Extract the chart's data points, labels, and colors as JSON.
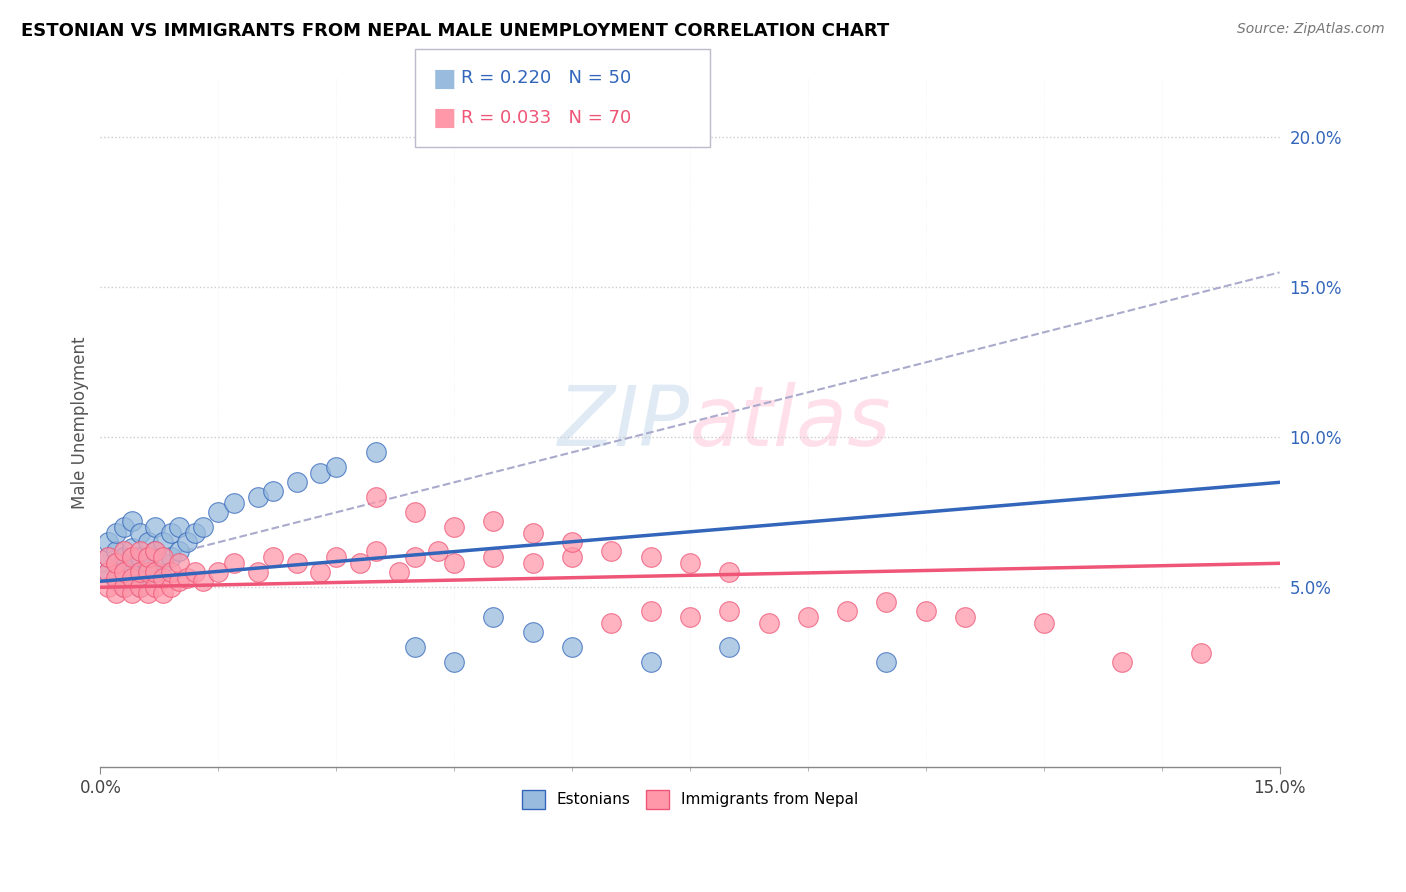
{
  "title": "ESTONIAN VS IMMIGRANTS FROM NEPAL MALE UNEMPLOYMENT CORRELATION CHART",
  "source": "Source: ZipAtlas.com",
  "ylabel": "Male Unemployment",
  "yaxis_ticks": [
    5.0,
    10.0,
    15.0,
    20.0
  ],
  "xlim": [
    0.0,
    0.15
  ],
  "ylim": [
    -0.01,
    0.22
  ],
  "legend1_R": 0.22,
  "legend1_N": 50,
  "legend2_R": 0.033,
  "legend2_N": 70,
  "color_estonian": "#99BBDD",
  "color_nepal": "#FF99AA",
  "color_trend_estonian": "#3366BB",
  "color_trend_nepal": "#EE5577",
  "color_trend_dashed": "#AAAACC",
  "watermark_color": "#CCDDEE",
  "watermark_color2": "#FFCCDD",
  "estonian_x": [
    0.001,
    0.001,
    0.001,
    0.002,
    0.002,
    0.002,
    0.002,
    0.003,
    0.003,
    0.003,
    0.003,
    0.004,
    0.004,
    0.004,
    0.004,
    0.005,
    0.005,
    0.005,
    0.005,
    0.006,
    0.006,
    0.006,
    0.007,
    0.007,
    0.007,
    0.008,
    0.008,
    0.009,
    0.009,
    0.01,
    0.01,
    0.011,
    0.012,
    0.013,
    0.015,
    0.017,
    0.02,
    0.022,
    0.025,
    0.028,
    0.03,
    0.035,
    0.04,
    0.045,
    0.05,
    0.055,
    0.06,
    0.07,
    0.08,
    0.1
  ],
  "estonian_y": [
    0.055,
    0.06,
    0.065,
    0.052,
    0.058,
    0.062,
    0.068,
    0.05,
    0.055,
    0.06,
    0.07,
    0.052,
    0.057,
    0.063,
    0.072,
    0.05,
    0.055,
    0.06,
    0.068,
    0.053,
    0.058,
    0.065,
    0.055,
    0.062,
    0.07,
    0.058,
    0.065,
    0.06,
    0.068,
    0.062,
    0.07,
    0.065,
    0.068,
    0.07,
    0.075,
    0.078,
    0.08,
    0.082,
    0.085,
    0.088,
    0.09,
    0.095,
    0.03,
    0.025,
    0.04,
    0.035,
    0.03,
    0.025,
    0.03,
    0.025
  ],
  "nepal_x": [
    0.001,
    0.001,
    0.001,
    0.002,
    0.002,
    0.002,
    0.003,
    0.003,
    0.003,
    0.004,
    0.004,
    0.004,
    0.005,
    0.005,
    0.005,
    0.006,
    0.006,
    0.006,
    0.007,
    0.007,
    0.007,
    0.008,
    0.008,
    0.008,
    0.009,
    0.009,
    0.01,
    0.01,
    0.011,
    0.012,
    0.013,
    0.015,
    0.017,
    0.02,
    0.022,
    0.025,
    0.028,
    0.03,
    0.033,
    0.035,
    0.038,
    0.04,
    0.043,
    0.045,
    0.05,
    0.055,
    0.06,
    0.065,
    0.07,
    0.075,
    0.08,
    0.085,
    0.09,
    0.095,
    0.1,
    0.105,
    0.11,
    0.12,
    0.13,
    0.14,
    0.035,
    0.04,
    0.045,
    0.05,
    0.055,
    0.06,
    0.065,
    0.07,
    0.075,
    0.08
  ],
  "nepal_y": [
    0.05,
    0.055,
    0.06,
    0.048,
    0.053,
    0.058,
    0.05,
    0.055,
    0.062,
    0.048,
    0.053,
    0.06,
    0.05,
    0.055,
    0.062,
    0.048,
    0.055,
    0.06,
    0.05,
    0.055,
    0.062,
    0.048,
    0.053,
    0.06,
    0.05,
    0.055,
    0.052,
    0.058,
    0.053,
    0.055,
    0.052,
    0.055,
    0.058,
    0.055,
    0.06,
    0.058,
    0.055,
    0.06,
    0.058,
    0.062,
    0.055,
    0.06,
    0.062,
    0.058,
    0.06,
    0.058,
    0.06,
    0.038,
    0.042,
    0.04,
    0.042,
    0.038,
    0.04,
    0.042,
    0.045,
    0.042,
    0.04,
    0.038,
    0.025,
    0.028,
    0.08,
    0.075,
    0.07,
    0.072,
    0.068,
    0.065,
    0.062,
    0.06,
    0.058,
    0.055
  ]
}
